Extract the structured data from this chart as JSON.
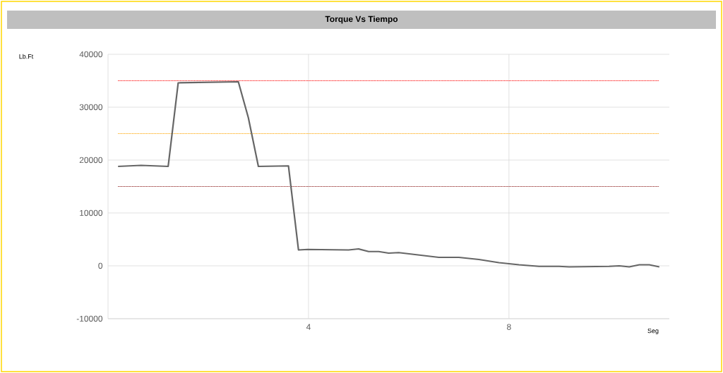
{
  "chart_data": {
    "type": "line",
    "title": "Torque Vs Tiempo",
    "xlabel": "Seg",
    "annotations": [
      "Lb.Ft"
    ],
    "x": [
      0.2,
      0.66,
      1.2,
      1.4,
      2.6,
      2.8,
      3.0,
      3.6,
      3.8,
      3.98,
      4.8,
      5.0,
      5.2,
      5.4,
      5.6,
      5.8,
      6.6,
      7.0,
      7.4,
      7.8,
      8.2,
      8.6,
      9.0,
      9.2,
      10.0,
      10.2,
      10.4,
      10.6,
      10.8,
      11.0
    ],
    "values": [
      18800,
      19000,
      18800,
      34600,
      34800,
      28000,
      18800,
      18900,
      3000,
      3100,
      3000,
      3200,
      2700,
      2700,
      2400,
      2500,
      1600,
      1600,
      1200,
      600,
      200,
      -100,
      -100,
      -200,
      -100,
      0,
      -200,
      200,
      200,
      -200
    ],
    "color": "#666666",
    "line_style": "solid",
    "xlim": [
      0,
      11.2
    ],
    "ylim": [
      -10000,
      40000
    ],
    "xticks": [
      4,
      8
    ],
    "yticks": [
      -10000,
      0,
      10000,
      20000,
      30000,
      40000
    ],
    "grid": true,
    "ref_lines": [
      {
        "axis": "y",
        "value": 35000,
        "color": "#ff0000",
        "line_style": "dotted"
      },
      {
        "axis": "y",
        "value": 25000,
        "color": "#ffa500",
        "line_style": "dotted"
      },
      {
        "axis": "y",
        "value": 15000,
        "color": "#8b1a1a",
        "line_style": "dotted"
      }
    ]
  }
}
